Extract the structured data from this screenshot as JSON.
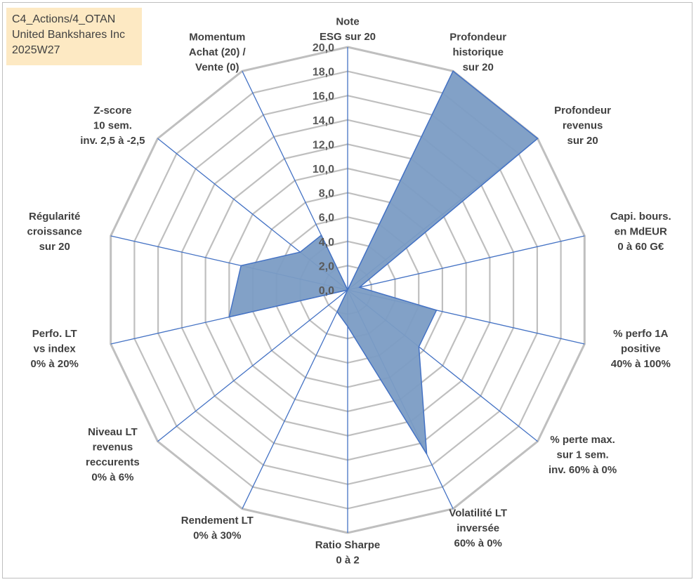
{
  "header": {
    "lines": [
      "C4_Actions/4_OTAN",
      "United Bankshares Inc",
      "2025W27"
    ]
  },
  "chart_data": {
    "type": "radar",
    "rmin": 0,
    "rmax": 20,
    "tick_step": 2,
    "ticks": [
      "0,0",
      "2,0",
      "4,0",
      "6,0",
      "8,0",
      "10,0",
      "12,0",
      "14,0",
      "16,0",
      "18,0",
      "20,0"
    ],
    "grid": true,
    "series_color": "#4472c4",
    "fill_color": "#7b9cc4",
    "grid_color": "#bfbfbf",
    "axes": [
      {
        "label": [
          "Note",
          "ESG sur 20"
        ],
        "value": 0
      },
      {
        "label": [
          "Profondeur",
          "historique",
          "sur 20"
        ],
        "value": 20
      },
      {
        "label": [
          "Profondeur",
          "revenus",
          "sur 20"
        ],
        "value": 20
      },
      {
        "label": [
          "Capi. bours.",
          "en MdEUR",
          "0 à 60 G€"
        ],
        "value": 1
      },
      {
        "label": [
          "% perfo 1A",
          "positive",
          "40% à 100%"
        ],
        "value": 7.5
      },
      {
        "label": [
          "% perte max.",
          "sur 1 sem.",
          "inv. 60% à 0%"
        ],
        "value": 7.5
      },
      {
        "label": [
          "Volatilité LT",
          "inversée",
          "60% à 0%"
        ],
        "value": 15
      },
      {
        "label": [
          "Ratio Sharpe",
          "0 à 2"
        ],
        "value": 3
      },
      {
        "label": [
          "Rendement LT",
          "0% à 30%"
        ],
        "value": 2
      },
      {
        "label": [
          "Niveau LT",
          "revenus",
          "reccurents",
          "0% à 6%"
        ],
        "value": 0
      },
      {
        "label": [
          "Perfo. LT",
          "vs index",
          "0% à 20%"
        ],
        "value": 10
      },
      {
        "label": [
          "Régularité",
          "croissance",
          "sur 20"
        ],
        "value": 9
      },
      {
        "label": [
          "Z-score",
          "10 sem.",
          "inv. 2,5 à -2,5"
        ],
        "value": 5
      },
      {
        "label": [
          "Momentum",
          "Achat (20) /",
          "Vente (0)"
        ],
        "value": 5
      }
    ]
  }
}
